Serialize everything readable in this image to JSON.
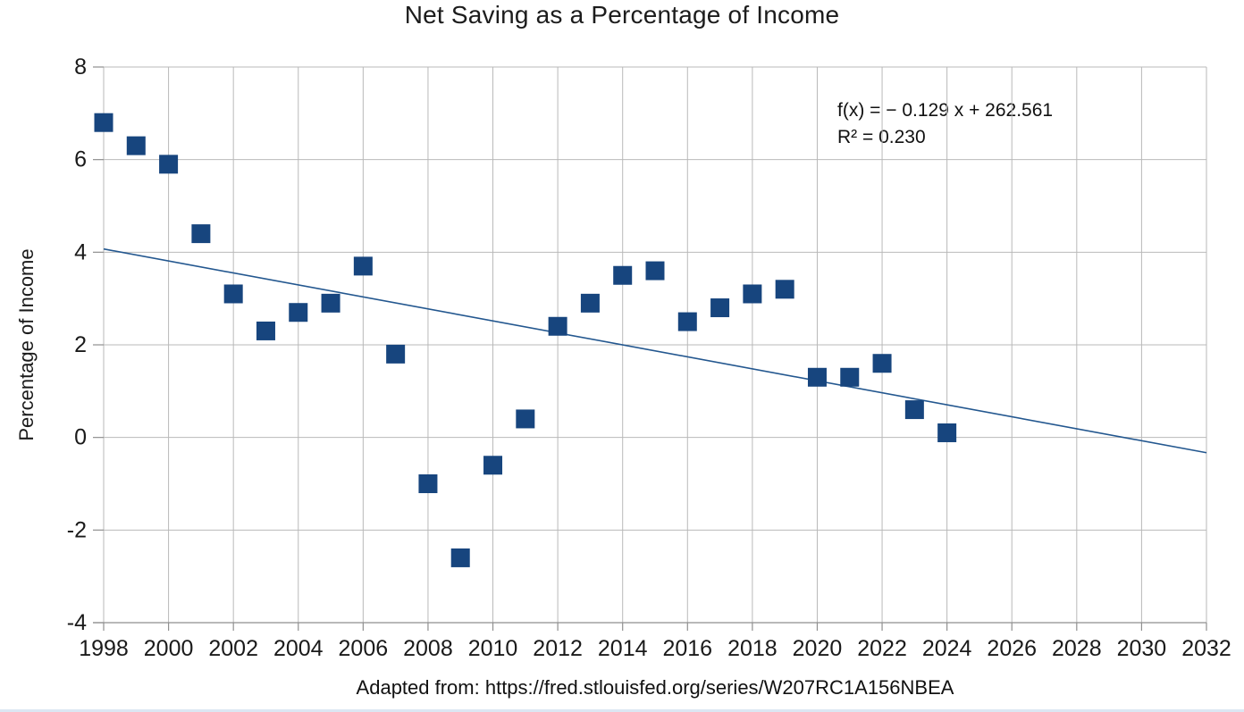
{
  "chart_data": {
    "type": "scatter",
    "title": "Net Saving as a Percentage of Income",
    "xlabel": "",
    "ylabel": "Percentage of Income",
    "caption": "Adapted from: https://fred.stlouisfed.org/series/W207RC1A156NBEA",
    "xlim": [
      1998,
      2032
    ],
    "ylim": [
      -4,
      8
    ],
    "x_ticks": [
      1998,
      2000,
      2002,
      2004,
      2006,
      2008,
      2010,
      2012,
      2014,
      2016,
      2018,
      2020,
      2022,
      2024,
      2026,
      2028,
      2030,
      2032
    ],
    "y_ticks": [
      8,
      6,
      4,
      2,
      0,
      -2,
      -4
    ],
    "grid": true,
    "legend": "none",
    "series": [
      {
        "name": "Net saving as a percentage of income",
        "x": [
          1998,
          1999,
          2000,
          2001,
          2002,
          2003,
          2004,
          2005,
          2006,
          2007,
          2008,
          2009,
          2010,
          2011,
          2012,
          2013,
          2014,
          2015,
          2016,
          2017,
          2018,
          2019,
          2020,
          2021,
          2022,
          2023,
          2024
        ],
        "y": [
          6.8,
          6.3,
          5.9,
          4.4,
          3.1,
          2.3,
          2.7,
          2.9,
          3.7,
          1.8,
          -1.0,
          -2.6,
          -0.6,
          0.4,
          2.4,
          2.9,
          3.5,
          3.6,
          2.5,
          2.8,
          3.1,
          3.2,
          1.3,
          1.3,
          1.6,
          0.6,
          0.1
        ]
      }
    ],
    "trendline": {
      "equation": "f(x) = − 0.129 x + 262.561",
      "r_squared": "R² = 0.230",
      "x_start": 1998,
      "y_start": 4.07,
      "x_end": 2032,
      "y_end": -0.33
    },
    "colors": {
      "marker": "#17457e",
      "trendline": "#23578f",
      "gridline": "#b9b9b9",
      "axis": "#8f8f8f",
      "text": "#1a1a1a"
    }
  }
}
